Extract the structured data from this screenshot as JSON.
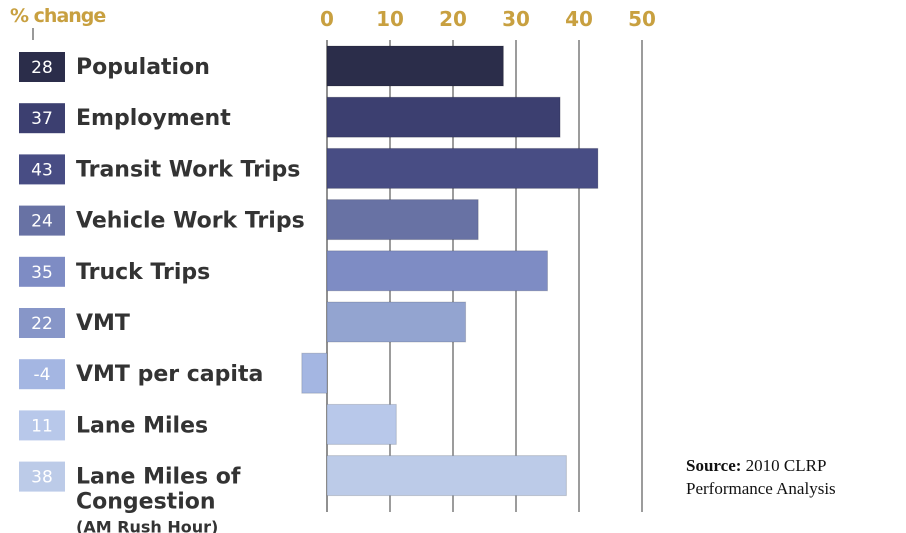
{
  "chart_data": {
    "type": "bar",
    "orientation": "horizontal",
    "axis_title": "% change",
    "xlim": [
      -4,
      50
    ],
    "ticks": [
      "0",
      "10",
      "20",
      "30",
      "40",
      "50"
    ],
    "tick_values": [
      0,
      10,
      20,
      30,
      40,
      50
    ],
    "grid": true,
    "categories": [
      [
        "Population"
      ],
      [
        "Employment"
      ],
      [
        "Transit Work Trips"
      ],
      [
        "Vehicle Work Trips"
      ],
      [
        "Truck Trips"
      ],
      [
        "VMT"
      ],
      [
        "VMT per capita"
      ],
      [
        "Lane Miles"
      ],
      [
        "Lane Miles of",
        "Congestion",
        "(AM Rush Hour)"
      ]
    ],
    "values": [
      28,
      37,
      43,
      24,
      35,
      22,
      -4,
      11,
      38
    ],
    "value_labels": [
      "28",
      "37",
      "43",
      "24",
      "35",
      "22",
      "-4",
      "11",
      "38"
    ],
    "colors": [
      "#2b2d4a",
      "#3c3f70",
      "#484d84",
      "#6872a4",
      "#7e8cc4",
      "#93a4d0",
      "#a4b6e2",
      "#b8c8ea",
      "#bccbe8"
    ],
    "badge_colors": [
      "#2b2d4a",
      "#3c3f70",
      "#484d84",
      "#6872a4",
      "#7e8cc4",
      "#8796c8",
      "#a4b6e2",
      "#b8c8ea",
      "#bccbe8"
    ]
  },
  "source": {
    "label": "Source:",
    "text": "2010 CLRP",
    "text2": "Performance Analysis"
  }
}
